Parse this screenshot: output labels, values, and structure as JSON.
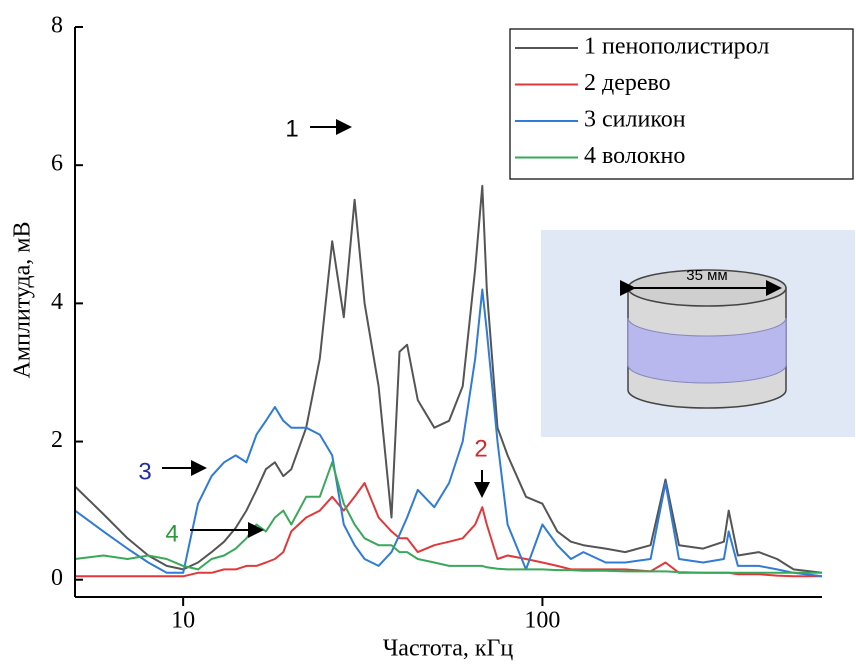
{
  "chart_data": {
    "type": "line",
    "x_label": "Частота, кГц",
    "y_label": "Амплитуда, мВ",
    "log_x": true,
    "xlim": [
      5,
      600
    ],
    "xticks": [
      10,
      100
    ],
    "ylim": [
      -0.25,
      8
    ],
    "yticks": [
      0,
      2,
      4,
      6,
      8
    ],
    "legend": "top-right",
    "x": [
      5,
      6,
      7,
      8,
      9,
      10,
      11,
      12,
      13,
      14,
      15,
      16,
      17,
      18,
      19,
      20,
      22,
      24,
      26,
      28,
      30,
      32,
      35,
      38,
      40,
      42,
      45,
      50,
      55,
      60,
      65,
      68,
      70,
      75,
      80,
      90,
      100,
      110,
      120,
      130,
      150,
      170,
      200,
      220,
      240,
      280,
      320,
      330,
      350,
      400,
      450,
      500,
      600
    ],
    "series": [
      {
        "name": "1 пенополистирол",
        "color": "#555555",
        "values": [
          1.35,
          0.95,
          0.6,
          0.35,
          0.2,
          0.15,
          0.25,
          0.4,
          0.55,
          0.75,
          1.0,
          1.3,
          1.6,
          1.7,
          1.5,
          1.6,
          2.2,
          3.2,
          4.9,
          3.8,
          5.5,
          4.0,
          2.8,
          0.9,
          3.3,
          3.4,
          2.6,
          2.2,
          2.3,
          2.8,
          4.5,
          5.7,
          4.2,
          2.2,
          1.8,
          1.2,
          1.1,
          0.7,
          0.55,
          0.5,
          0.45,
          0.4,
          0.5,
          1.45,
          0.5,
          0.45,
          0.55,
          1.0,
          0.35,
          0.4,
          0.3,
          0.15,
          0.1
        ]
      },
      {
        "name": "2 дерево",
        "color": "#e0393b",
        "values": [
          0.05,
          0.05,
          0.05,
          0.05,
          0.05,
          0.05,
          0.1,
          0.1,
          0.15,
          0.15,
          0.2,
          0.2,
          0.25,
          0.3,
          0.4,
          0.7,
          0.9,
          1.0,
          1.2,
          1.0,
          1.2,
          1.4,
          0.9,
          0.7,
          0.6,
          0.6,
          0.4,
          0.5,
          0.55,
          0.6,
          0.8,
          1.05,
          0.8,
          0.3,
          0.35,
          0.3,
          0.25,
          0.2,
          0.15,
          0.15,
          0.15,
          0.15,
          0.12,
          0.25,
          0.1,
          0.1,
          0.1,
          0.1,
          0.08,
          0.08,
          0.06,
          0.05,
          0.05
        ]
      },
      {
        "name": "3 силикон",
        "color": "#2f7bd6",
        "values": [
          1.0,
          0.7,
          0.45,
          0.25,
          0.1,
          0.1,
          1.1,
          1.5,
          1.7,
          1.8,
          1.7,
          2.1,
          2.3,
          2.5,
          2.3,
          2.2,
          2.2,
          2.1,
          1.8,
          0.8,
          0.5,
          0.3,
          0.2,
          0.4,
          0.65,
          0.9,
          1.3,
          1.05,
          1.4,
          2.0,
          3.2,
          4.2,
          3.6,
          2.0,
          0.8,
          0.15,
          0.8,
          0.5,
          0.3,
          0.4,
          0.25,
          0.25,
          0.3,
          1.4,
          0.3,
          0.25,
          0.3,
          0.7,
          0.2,
          0.2,
          0.15,
          0.1,
          0.05
        ]
      },
      {
        "name": "4 волокно",
        "color": "#3aa85a",
        "values": [
          0.3,
          0.35,
          0.3,
          0.35,
          0.3,
          0.2,
          0.15,
          0.3,
          0.35,
          0.45,
          0.6,
          0.8,
          0.7,
          0.9,
          1.0,
          0.8,
          1.2,
          1.2,
          1.7,
          1.1,
          0.8,
          0.6,
          0.5,
          0.5,
          0.4,
          0.4,
          0.3,
          0.25,
          0.2,
          0.2,
          0.2,
          0.2,
          0.18,
          0.16,
          0.15,
          0.15,
          0.15,
          0.14,
          0.14,
          0.13,
          0.13,
          0.12,
          0.12,
          0.12,
          0.11,
          0.1,
          0.1,
          0.1,
          0.1,
          0.1,
          0.1,
          0.1,
          0.1
        ]
      }
    ],
    "annotations": [
      {
        "text": "1",
        "color": "#000000"
      },
      {
        "text": "2",
        "color": "#d12a2a"
      },
      {
        "text": "3",
        "color": "#1f2fa8"
      },
      {
        "text": "4",
        "color": "#2b9a3a"
      }
    ],
    "inset_label": "35 мм"
  }
}
